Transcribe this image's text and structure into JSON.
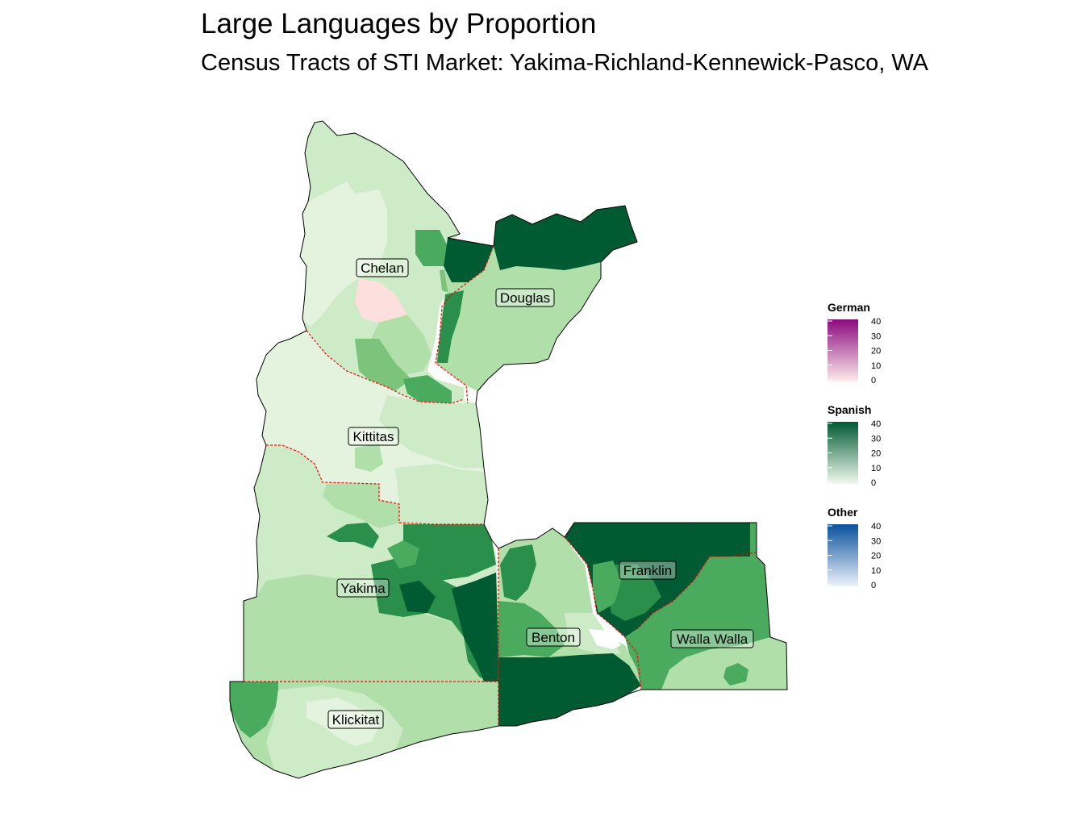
{
  "title": "Large Languages by Proportion",
  "subtitle": "Census Tracts of STI Market: Yakima-Richland-Kennewick-Pasco, WA",
  "counties": [
    {
      "name": "Chelan",
      "spanish_share": "low"
    },
    {
      "name": "Douglas",
      "spanish_share": "medium"
    },
    {
      "name": "Kittitas",
      "spanish_share": "low"
    },
    {
      "name": "Yakima",
      "spanish_share": "high"
    },
    {
      "name": "Benton",
      "spanish_share": "medium"
    },
    {
      "name": "Franklin",
      "spanish_share": "high"
    },
    {
      "name": "Walla Walla",
      "spanish_share": "medium"
    },
    {
      "name": "Klickitat",
      "spanish_share": "low"
    }
  ],
  "legends": [
    {
      "title": "German",
      "ticks": [
        "40",
        "30",
        "20",
        "10",
        "0"
      ],
      "color_low": "#fdeceb",
      "color_high": "#8b0a7e"
    },
    {
      "title": "Spanish",
      "ticks": [
        "40",
        "30",
        "20",
        "10",
        "0"
      ],
      "color_low": "#f2faf0",
      "color_high": "#005a32"
    },
    {
      "title": "Other",
      "ticks": [
        "40",
        "30",
        "20",
        "10",
        "0"
      ],
      "color_low": "#eef3fb",
      "color_high": "#08519c"
    }
  ],
  "scale_range": [
    0,
    40
  ],
  "colors": {
    "spanish_very_low": "#e3f3de",
    "spanish_low": "#cdebc6",
    "spanish_mid_low": "#b0dfaa",
    "spanish_mid": "#7cc47c",
    "spanish_mid_high": "#4aab5f",
    "spanish_high": "#2a8f4a",
    "spanish_max": "#005a32",
    "german_low": "#fde0dd",
    "county_border": "#ff0000"
  }
}
